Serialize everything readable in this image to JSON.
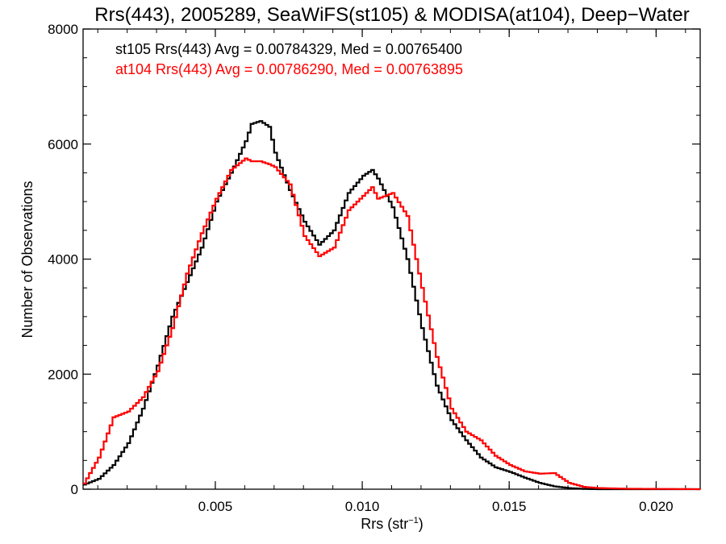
{
  "chart_data": {
    "type": "line",
    "title": "Rrs(443), 2005289, SeaWiFS(st105) & MODISA(at104), Deep−Water",
    "xlabel": "Rrs (str",
    "xlabel_sup": "−1",
    "xlabel_close": ")",
    "ylabel": "Number of Observations",
    "xlim": [
      0.0005,
      0.0215
    ],
    "ylim": [
      0,
      8000
    ],
    "x_ticks": [
      0.005,
      0.01,
      0.015,
      0.02
    ],
    "x_tick_labels": [
      "0.005",
      "0.010",
      "0.015",
      "0.020"
    ],
    "y_ticks": [
      0,
      2000,
      4000,
      6000,
      8000
    ],
    "y_tick_labels": [
      "0",
      "2000",
      "4000",
      "6000",
      "8000"
    ],
    "grid": false,
    "legend_position": "top-left",
    "x": [
      0.0005,
      0.001,
      0.0015,
      0.002,
      0.0025,
      0.003,
      0.0035,
      0.004,
      0.0045,
      0.005,
      0.0055,
      0.006,
      0.0062,
      0.0065,
      0.0068,
      0.007,
      0.0075,
      0.008,
      0.0085,
      0.009,
      0.0095,
      0.01,
      0.0103,
      0.0105,
      0.011,
      0.0115,
      0.012,
      0.0125,
      0.013,
      0.0135,
      0.014,
      0.0145,
      0.015,
      0.0155,
      0.016,
      0.0165,
      0.017,
      0.0175,
      0.018,
      0.019,
      0.02,
      0.0215
    ],
    "series": [
      {
        "name": "st105 Rrs(443) Avg = 0.00784329, Med = 0.00765400",
        "color": "#000000",
        "values": [
          80,
          180,
          420,
          800,
          1400,
          2150,
          3000,
          3600,
          4200,
          5000,
          5500,
          6050,
          6350,
          6400,
          6300,
          5850,
          5200,
          4650,
          4250,
          4500,
          5150,
          5450,
          5550,
          5400,
          4900,
          4000,
          2800,
          1800,
          1200,
          850,
          550,
          380,
          300,
          200,
          110,
          50,
          20,
          5,
          0,
          0,
          0,
          0
        ]
      },
      {
        "name": "at104 Rrs(443) Avg = 0.00786290, Med = 0.00763895",
        "color": "#ff0000",
        "values": [
          100,
          550,
          1250,
          1350,
          1600,
          2050,
          2800,
          3750,
          4450,
          5050,
          5550,
          5750,
          5700,
          5700,
          5650,
          5600,
          5300,
          4400,
          4050,
          4200,
          4850,
          5100,
          5250,
          5050,
          5150,
          4750,
          3500,
          2300,
          1400,
          1000,
          850,
          580,
          420,
          310,
          270,
          280,
          110,
          40,
          20,
          8,
          5,
          0
        ]
      }
    ]
  }
}
